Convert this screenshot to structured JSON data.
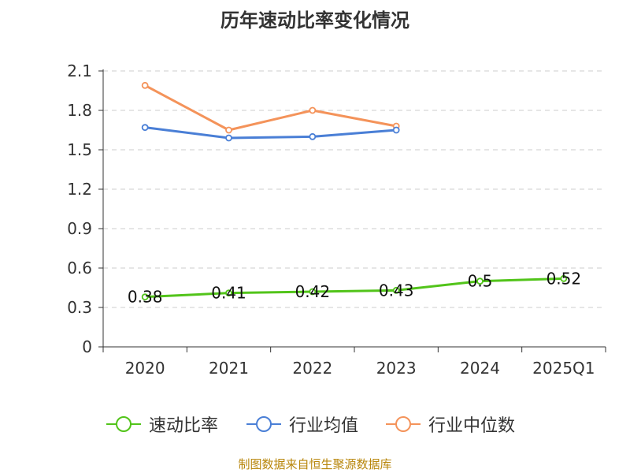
{
  "chart_data": {
    "type": "line",
    "title": "历年速动比率变化情况",
    "categories": [
      "2020",
      "2021",
      "2022",
      "2023",
      "2024",
      "2025Q1"
    ],
    "yticks": [
      "0",
      "0.3",
      "0.6",
      "0.9",
      "1.2",
      "1.5",
      "1.8",
      "2.1"
    ],
    "ylim": [
      0,
      2.1
    ],
    "grid": true,
    "legend_position": "bottom",
    "series": [
      {
        "name": "速动比率",
        "color": "#52c41a",
        "show_labels": true,
        "values": [
          0.38,
          0.41,
          0.42,
          0.43,
          0.5,
          0.52
        ],
        "labels": [
          "0.38",
          "0.41",
          "0.42",
          "0.43",
          "0.5",
          "0.52"
        ]
      },
      {
        "name": "行业均值",
        "color": "#4a7fd6",
        "show_labels": false,
        "values": [
          1.67,
          1.59,
          1.6,
          1.65,
          null,
          null
        ]
      },
      {
        "name": "行业中位数",
        "color": "#f4935a",
        "show_labels": false,
        "values": [
          1.99,
          1.65,
          1.8,
          1.68,
          null,
          null
        ]
      }
    ]
  },
  "source_text": "制图数据来自恒生聚源数据库"
}
